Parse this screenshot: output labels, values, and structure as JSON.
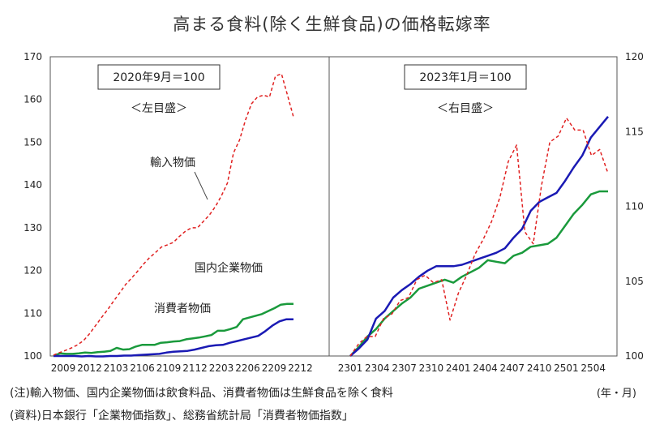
{
  "title": "高まる食料(除く生鮮食品)の価格転嫁率",
  "notes": {
    "note1": "(注)輸入物価、国内企業物価は飲食料品、消費者物価は生鮮食品を除く食料",
    "note2": "(資料)日本銀行「企業物価指数」、総務省統計局「消費者物価指数」",
    "unit": "(年・月)"
  },
  "colors": {
    "import": "#e02020",
    "domestic": "#1a9a3c",
    "consumer": "#1a1ab4"
  },
  "chart_data": [
    {
      "type": "line",
      "panel": "left",
      "base_label": "2020年9月＝100",
      "scale_label": "＜左目盛＞",
      "x_tick_labels": [
        "2009",
        "2012",
        "2103",
        "2106",
        "2109",
        "2112",
        "2203",
        "2206",
        "2209",
        "2212"
      ],
      "ylim": [
        100,
        170
      ],
      "yticks": [
        100,
        110,
        120,
        130,
        140,
        150,
        160,
        170
      ],
      "series_labels": {
        "import": "輸入物価",
        "domestic": "国内企業物価",
        "consumer": "消費者物価"
      },
      "series": [
        {
          "key": "import",
          "style": "dashed",
          "values": [
            100.2,
            100.8,
            101.3,
            101.9,
            102.6,
            103.6,
            105.2,
            107.1,
            109.0,
            110.8,
            112.8,
            114.7,
            116.7,
            118.2,
            119.8,
            121.5,
            123.0,
            124.2,
            125.5,
            126.0,
            126.6,
            128.0,
            129.2,
            130.0,
            130.0,
            131.5,
            133.0,
            135.0,
            137.5,
            140.5,
            147.5,
            150.5,
            155.2,
            159.0,
            160.6,
            161.0,
            160.6,
            165.5,
            166.0,
            161.0,
            155.9
          ]
        },
        {
          "key": "domestic",
          "style": "solid",
          "values": [
            100.0,
            100.6,
            100.5,
            100.5,
            100.6,
            100.8,
            100.7,
            100.9,
            101.0,
            101.2,
            101.9,
            101.5,
            101.6,
            102.2,
            102.6,
            102.6,
            102.6,
            103.1,
            103.2,
            103.4,
            103.5,
            103.9,
            104.1,
            104.3,
            104.6,
            104.9,
            105.9,
            105.9,
            106.3,
            106.8,
            108.6,
            109.0,
            109.4,
            109.8,
            110.5,
            111.2,
            112.0,
            112.2,
            112.2
          ]
        },
        {
          "key": "consumer",
          "style": "solid",
          "values": [
            100.0,
            100.0,
            100.0,
            100.0,
            99.9,
            100.0,
            99.9,
            99.9,
            100.0,
            100.0,
            100.1,
            100.1,
            100.2,
            100.3,
            100.4,
            100.5,
            100.8,
            101.0,
            101.1,
            101.2,
            101.5,
            101.9,
            102.3,
            102.5,
            102.6,
            103.1,
            103.5,
            103.9,
            104.3,
            104.7,
            105.8,
            107.1,
            108.1,
            108.6,
            108.6
          ]
        }
      ]
    },
    {
      "type": "line",
      "panel": "right",
      "base_label": "2023年1月＝100",
      "scale_label": "＜右目盛＞",
      "x_tick_labels": [
        "2301",
        "2304",
        "2307",
        "2310",
        "2401",
        "2404",
        "2407",
        "2410",
        "2501",
        "2504"
      ],
      "ylim": [
        100,
        120
      ],
      "yticks": [
        100,
        105,
        110,
        115,
        120
      ],
      "series": [
        {
          "key": "import",
          "style": "dashed",
          "values": [
            100.0,
            100.8,
            101.3,
            101.3,
            102.5,
            102.8,
            103.7,
            103.9,
            105.1,
            105.4,
            104.9,
            105.1,
            102.4,
            104.2,
            105.4,
            106.8,
            107.8,
            109.0,
            110.6,
            113.0,
            114.1,
            108.3,
            107.5,
            111.4,
            114.3,
            114.7,
            115.9,
            115.1,
            115.1,
            113.4,
            113.8,
            112.2
          ]
        },
        {
          "key": "domestic",
          "style": "solid",
          "values": [
            100.0,
            100.6,
            101.3,
            101.8,
            102.5,
            103.0,
            103.5,
            103.9,
            104.5,
            104.7,
            104.9,
            105.1,
            104.9,
            105.3,
            105.6,
            105.9,
            106.4,
            106.3,
            106.2,
            106.7,
            106.9,
            107.3,
            107.4,
            107.5,
            107.9,
            108.7,
            109.5,
            110.1,
            110.8,
            111.0,
            111.0
          ]
        },
        {
          "key": "consumer",
          "style": "solid",
          "values": [
            100.0,
            100.5,
            101.1,
            102.5,
            103.0,
            103.9,
            104.4,
            104.8,
            105.3,
            105.7,
            106.0,
            106.0,
            106.0,
            106.1,
            106.3,
            106.5,
            106.7,
            106.9,
            107.2,
            107.9,
            108.5,
            109.7,
            110.3,
            110.6,
            110.9,
            111.7,
            112.6,
            113.4,
            114.6,
            115.3,
            116.0
          ]
        }
      ]
    }
  ]
}
